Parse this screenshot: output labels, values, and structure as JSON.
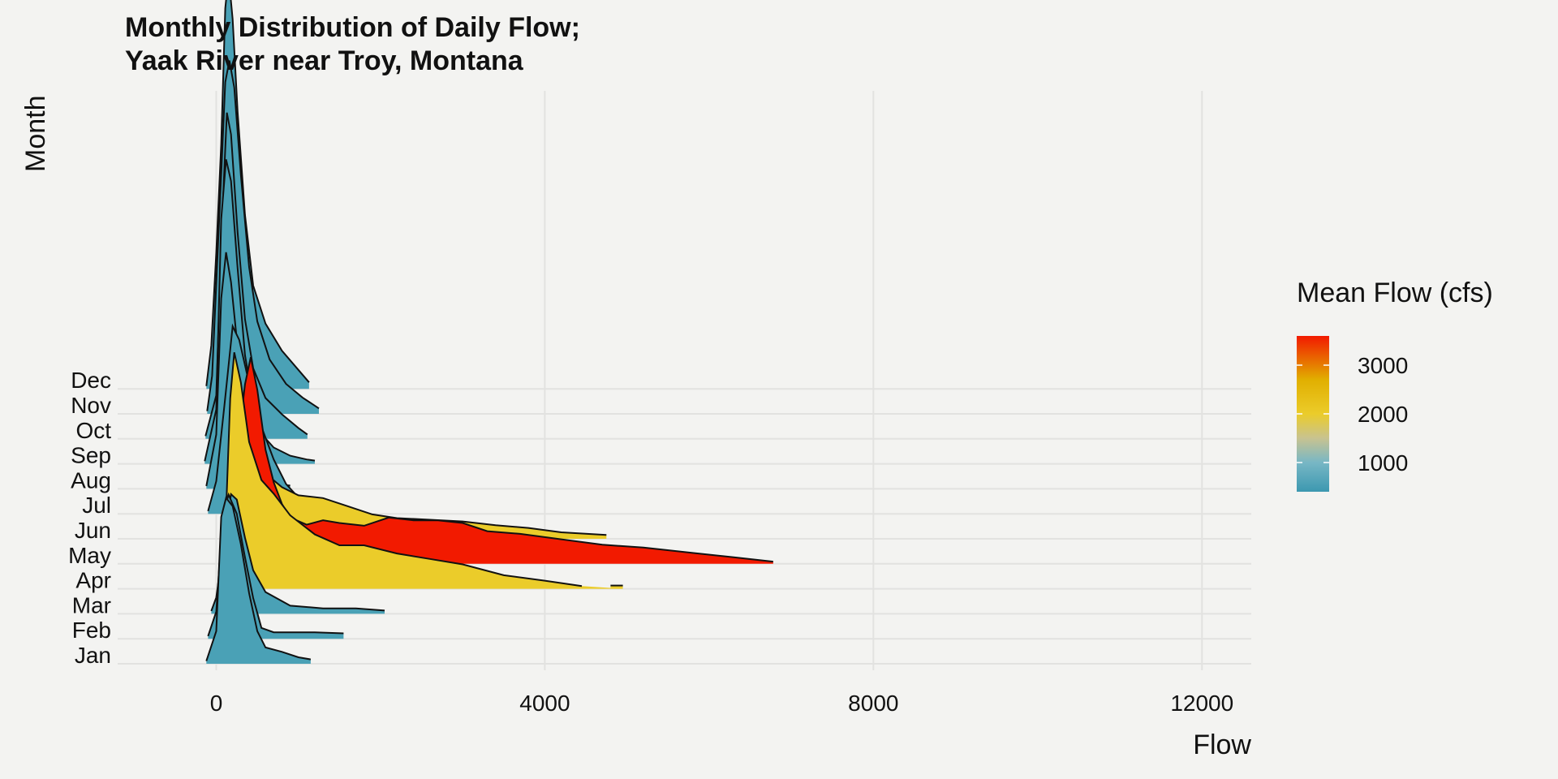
{
  "chart_data": {
    "type": "ridgeline",
    "title": [
      "Monthly Distribution of Daily Flow;",
      "Yaak River near Troy, Montana"
    ],
    "xlabel": "Flow",
    "ylabel": "Month",
    "xlim": [
      -1200,
      12600
    ],
    "xticks": [
      0,
      4000,
      8000,
      12000
    ],
    "tick_labels": [
      "0",
      "4000",
      "8000",
      "12000"
    ],
    "grid": true,
    "legend": {
      "title": "Mean Flow (cfs)",
      "position": "right",
      "range": [
        400,
        3600
      ],
      "ticks": [
        1000,
        2000,
        3000
      ],
      "tick_labels": [
        "1000",
        "2000",
        "3000"
      ],
      "gradient": [
        {
          "value": 400,
          "color": "#3c98b0"
        },
        {
          "value": 1000,
          "color": "#78b7c5"
        },
        {
          "value": 1500,
          "color": "#c8c390"
        },
        {
          "value": 2000,
          "color": "#ebcc2a"
        },
        {
          "value": 2700,
          "color": "#e1af00"
        },
        {
          "value": 3600,
          "color": "#f21a00"
        }
      ]
    },
    "months": [
      {
        "name": "Jan",
        "color": "#4aa1b6",
        "min": -120,
        "max": 1150,
        "density": [
          [
            -120,
            0.05
          ],
          [
            0,
            0.6
          ],
          [
            60,
            2.7
          ],
          [
            120,
            3.05
          ],
          [
            200,
            2.9
          ],
          [
            300,
            2.2
          ],
          [
            400,
            1.3
          ],
          [
            500,
            0.6
          ],
          [
            600,
            0.3
          ],
          [
            800,
            0.22
          ],
          [
            1000,
            0.12
          ],
          [
            1150,
            0.08
          ]
        ]
      },
      {
        "name": "Feb",
        "color": "#4aa1b6",
        "min": -100,
        "max": 1550,
        "density": [
          [
            -100,
            0.05
          ],
          [
            0,
            0.5
          ],
          [
            80,
            2.3
          ],
          [
            150,
            2.65
          ],
          [
            250,
            2.3
          ],
          [
            350,
            1.5
          ],
          [
            450,
            0.75
          ],
          [
            550,
            0.2
          ],
          [
            700,
            0.12
          ],
          [
            900,
            0.12
          ],
          [
            1200,
            0.12
          ],
          [
            1550,
            0.1
          ]
        ]
      },
      {
        "name": "Mar",
        "color": "#4aa1b6",
        "min": -60,
        "max": 2050,
        "density": [
          [
            -60,
            0.05
          ],
          [
            0,
            0.3
          ],
          [
            100,
            1.4
          ],
          [
            180,
            2.2
          ],
          [
            250,
            2.1
          ],
          [
            350,
            1.4
          ],
          [
            450,
            0.8
          ],
          [
            600,
            0.4
          ],
          [
            900,
            0.15
          ],
          [
            1300,
            0.1
          ],
          [
            1700,
            0.1
          ],
          [
            2050,
            0.06
          ]
        ]
      },
      {
        "name": "Apr",
        "color": "#ebcc2a",
        "min": 30,
        "max": 4950,
        "density": [
          [
            30,
            0.05
          ],
          [
            100,
            0.6
          ],
          [
            170,
            3.5
          ],
          [
            220,
            4.35
          ],
          [
            300,
            3.8
          ],
          [
            400,
            2.7
          ],
          [
            550,
            2.0
          ],
          [
            700,
            1.75
          ],
          [
            900,
            1.35
          ],
          [
            1200,
            1.0
          ],
          [
            1500,
            0.8
          ],
          [
            1800,
            0.8
          ],
          [
            2200,
            0.65
          ],
          [
            2600,
            0.55
          ],
          [
            3000,
            0.45
          ],
          [
            3500,
            0.25
          ],
          [
            4000,
            0.15
          ],
          [
            4450,
            0.05
          ]
        ],
        "extra_segment": {
          "from": 4800,
          "to": 4950,
          "height": 0.06
        }
      },
      {
        "name": "May",
        "color": "#f21a00",
        "min": 60,
        "max": 6780,
        "density": [
          [
            60,
            0.05
          ],
          [
            150,
            1.0
          ],
          [
            250,
            2.0
          ],
          [
            350,
            3.3
          ],
          [
            420,
            3.8
          ],
          [
            500,
            3.2
          ],
          [
            600,
            2.1
          ],
          [
            700,
            1.5
          ],
          [
            800,
            1.1
          ],
          [
            900,
            0.85
          ],
          [
            1100,
            0.72
          ],
          [
            1300,
            0.8
          ],
          [
            1500,
            0.75
          ],
          [
            1800,
            0.7
          ],
          [
            2100,
            0.85
          ],
          [
            2400,
            0.8
          ],
          [
            2700,
            0.8
          ],
          [
            3000,
            0.75
          ],
          [
            3300,
            0.6
          ],
          [
            3700,
            0.55
          ],
          [
            4200,
            0.45
          ],
          [
            4700,
            0.35
          ],
          [
            5200,
            0.3
          ],
          [
            5800,
            0.2
          ],
          [
            6300,
            0.12
          ],
          [
            6780,
            0.04
          ]
        ]
      },
      {
        "name": "Jun",
        "color": "#ebcc2a",
        "min": 80,
        "max": 4750,
        "density": [
          [
            80,
            0.05
          ],
          [
            150,
            0.6
          ],
          [
            250,
            1.1
          ],
          [
            350,
            1.4
          ],
          [
            450,
            1.35
          ],
          [
            600,
            1.2
          ],
          [
            800,
            0.95
          ],
          [
            1000,
            0.8
          ],
          [
            1300,
            0.75
          ],
          [
            1600,
            0.6
          ],
          [
            1900,
            0.45
          ],
          [
            2200,
            0.38
          ],
          [
            2600,
            0.35
          ],
          [
            3000,
            0.32
          ],
          [
            3400,
            0.25
          ],
          [
            3800,
            0.2
          ],
          [
            4200,
            0.12
          ],
          [
            4750,
            0.07
          ]
        ]
      },
      {
        "name": "Jul",
        "color": "#4aa1b6",
        "min": -100,
        "max": 1250,
        "density": [
          [
            -100,
            0.05
          ],
          [
            0,
            0.6
          ],
          [
            100,
            2.0
          ],
          [
            200,
            3.45
          ],
          [
            280,
            3.2
          ],
          [
            400,
            2.4
          ],
          [
            550,
            1.6
          ],
          [
            700,
            1.0
          ],
          [
            850,
            0.55
          ],
          [
            1000,
            0.3
          ],
          [
            1150,
            0.15
          ],
          [
            1250,
            0.1
          ]
        ]
      },
      {
        "name": "Aug",
        "color": "#4aa1b6",
        "min": -120,
        "max": 900,
        "density": [
          [
            -120,
            0.05
          ],
          [
            0,
            1.0
          ],
          [
            60,
            3.5
          ],
          [
            120,
            4.35
          ],
          [
            180,
            3.8
          ],
          [
            260,
            2.6
          ],
          [
            350,
            1.2
          ],
          [
            450,
            0.5
          ],
          [
            600,
            0.15
          ],
          [
            750,
            0.08
          ],
          [
            900,
            0.06
          ]
        ]
      },
      {
        "name": "Sep",
        "color": "#4aa1b6",
        "min": -140,
        "max": 1200,
        "density": [
          [
            -140,
            0.05
          ],
          [
            0,
            1.0
          ],
          [
            60,
            4.5
          ],
          [
            120,
            5.6
          ],
          [
            180,
            5.2
          ],
          [
            260,
            3.6
          ],
          [
            350,
            2.0
          ],
          [
            450,
            1.1
          ],
          [
            550,
            0.55
          ],
          [
            700,
            0.3
          ],
          [
            900,
            0.15
          ],
          [
            1100,
            0.08
          ],
          [
            1200,
            0.06
          ]
        ]
      },
      {
        "name": "Oct",
        "color": "#4aa1b6",
        "min": -130,
        "max": 1110,
        "density": [
          [
            -130,
            0.05
          ],
          [
            0,
            0.8
          ],
          [
            70,
            4.0
          ],
          [
            130,
            6.0
          ],
          [
            180,
            5.6
          ],
          [
            260,
            3.8
          ],
          [
            350,
            2.2
          ],
          [
            450,
            1.3
          ],
          [
            600,
            0.75
          ],
          [
            800,
            0.45
          ],
          [
            1000,
            0.2
          ],
          [
            1110,
            0.08
          ]
        ]
      }
    ]
  }
}
